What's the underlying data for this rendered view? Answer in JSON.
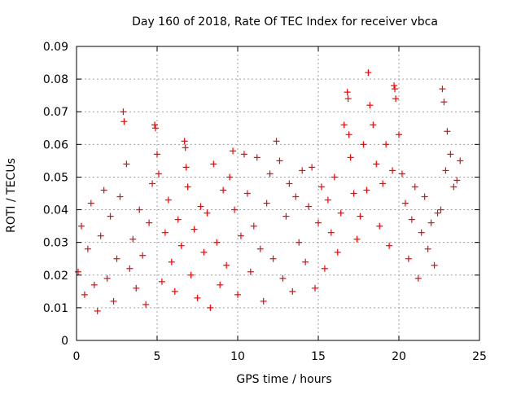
{
  "chart_data": {
    "type": "scatter",
    "title": "Day 160 of 2018, Rate Of TEC Index for receiver vbca",
    "xlabel": "GPS time / hours",
    "ylabel": "ROTI / TECUs",
    "xlim": [
      0,
      25
    ],
    "ylim": [
      0,
      0.09
    ],
    "xticks": [
      0,
      5,
      10,
      15,
      20,
      25
    ],
    "yticks": [
      0,
      0.01,
      0.02,
      0.03,
      0.04,
      0.05,
      0.06,
      0.07,
      0.08,
      0.09
    ],
    "xtick_labels": [
      "0",
      "5",
      "10",
      "15",
      "20",
      "25"
    ],
    "ytick_labels": [
      "0",
      "0.01",
      "0.02",
      "0.03",
      "0.04",
      "0.05",
      "0.06",
      "0.07",
      "0.08",
      "0.09"
    ],
    "grid": true,
    "marker": "plus",
    "series": [
      {
        "name": "ROTI",
        "color": "#ff0000",
        "x": [
          0.1,
          0.3,
          0.5,
          0.7,
          0.9,
          1.1,
          1.3,
          1.5,
          1.7,
          1.9,
          2.1,
          2.3,
          2.5,
          2.7,
          2.9,
          2.95,
          3.1,
          3.3,
          3.5,
          3.7,
          3.9,
          4.1,
          4.3,
          4.5,
          4.7,
          4.85,
          4.9,
          5.0,
          5.1,
          5.3,
          5.5,
          5.7,
          5.9,
          6.1,
          6.3,
          6.5,
          6.7,
          6.75,
          6.8,
          6.9,
          7.1,
          7.3,
          7.5,
          7.7,
          7.9,
          8.1,
          8.3,
          8.5,
          8.7,
          8.9,
          9.1,
          9.3,
          9.5,
          9.7,
          9.8,
          10.0,
          10.2,
          10.4,
          10.6,
          10.8,
          11.0,
          11.2,
          11.4,
          11.6,
          11.8,
          12.0,
          12.2,
          12.4,
          12.6,
          12.8,
          13.0,
          13.2,
          13.4,
          13.6,
          13.8,
          14.0,
          14.2,
          14.4,
          14.6,
          14.8,
          15.0,
          15.2,
          15.4,
          15.6,
          15.8,
          16.0,
          16.2,
          16.4,
          16.6,
          16.8,
          16.85,
          16.9,
          17.0,
          17.2,
          17.4,
          17.6,
          17.8,
          18.0,
          18.1,
          18.2,
          18.4,
          18.6,
          18.8,
          19.0,
          19.2,
          19.4,
          19.6,
          19.7,
          19.75,
          19.8,
          20.0,
          20.2,
          20.4,
          20.6,
          20.8,
          21.0,
          21.2,
          21.4,
          21.6,
          21.8,
          22.0,
          22.2,
          22.4,
          22.6,
          22.7,
          22.8,
          22.9,
          23.0,
          23.2,
          23.4,
          23.6,
          23.8
        ],
        "y": [
          0.021,
          0.035,
          0.014,
          0.028,
          0.042,
          0.017,
          0.009,
          0.032,
          0.046,
          0.019,
          0.038,
          0.012,
          0.025,
          0.044,
          0.07,
          0.067,
          0.054,
          0.022,
          0.031,
          0.016,
          0.04,
          0.026,
          0.011,
          0.036,
          0.048,
          0.066,
          0.065,
          0.057,
          0.051,
          0.018,
          0.033,
          0.043,
          0.024,
          0.015,
          0.037,
          0.029,
          0.061,
          0.059,
          0.053,
          0.047,
          0.02,
          0.034,
          0.013,
          0.041,
          0.027,
          0.039,
          0.01,
          0.054,
          0.03,
          0.017,
          0.046,
          0.023,
          0.05,
          0.058,
          0.04,
          0.014,
          0.032,
          0.057,
          0.045,
          0.021,
          0.035,
          0.056,
          0.028,
          0.012,
          0.042,
          0.051,
          0.025,
          0.061,
          0.055,
          0.019,
          0.038,
          0.048,
          0.015,
          0.044,
          0.03,
          0.052,
          0.024,
          0.041,
          0.053,
          0.016,
          0.036,
          0.047,
          0.022,
          0.043,
          0.033,
          0.05,
          0.027,
          0.039,
          0.066,
          0.076,
          0.074,
          0.063,
          0.056,
          0.045,
          0.031,
          0.038,
          0.06,
          0.046,
          0.082,
          0.072,
          0.066,
          0.054,
          0.035,
          0.048,
          0.06,
          0.029,
          0.052,
          0.078,
          0.077,
          0.074,
          0.063,
          0.051,
          0.042,
          0.025,
          0.037,
          0.047,
          0.019,
          0.033,
          0.044,
          0.028,
          0.036,
          0.023,
          0.039,
          0.04,
          0.077,
          0.073,
          0.052,
          0.064,
          0.057,
          0.047,
          0.049,
          0.055
        ]
      }
    ]
  }
}
